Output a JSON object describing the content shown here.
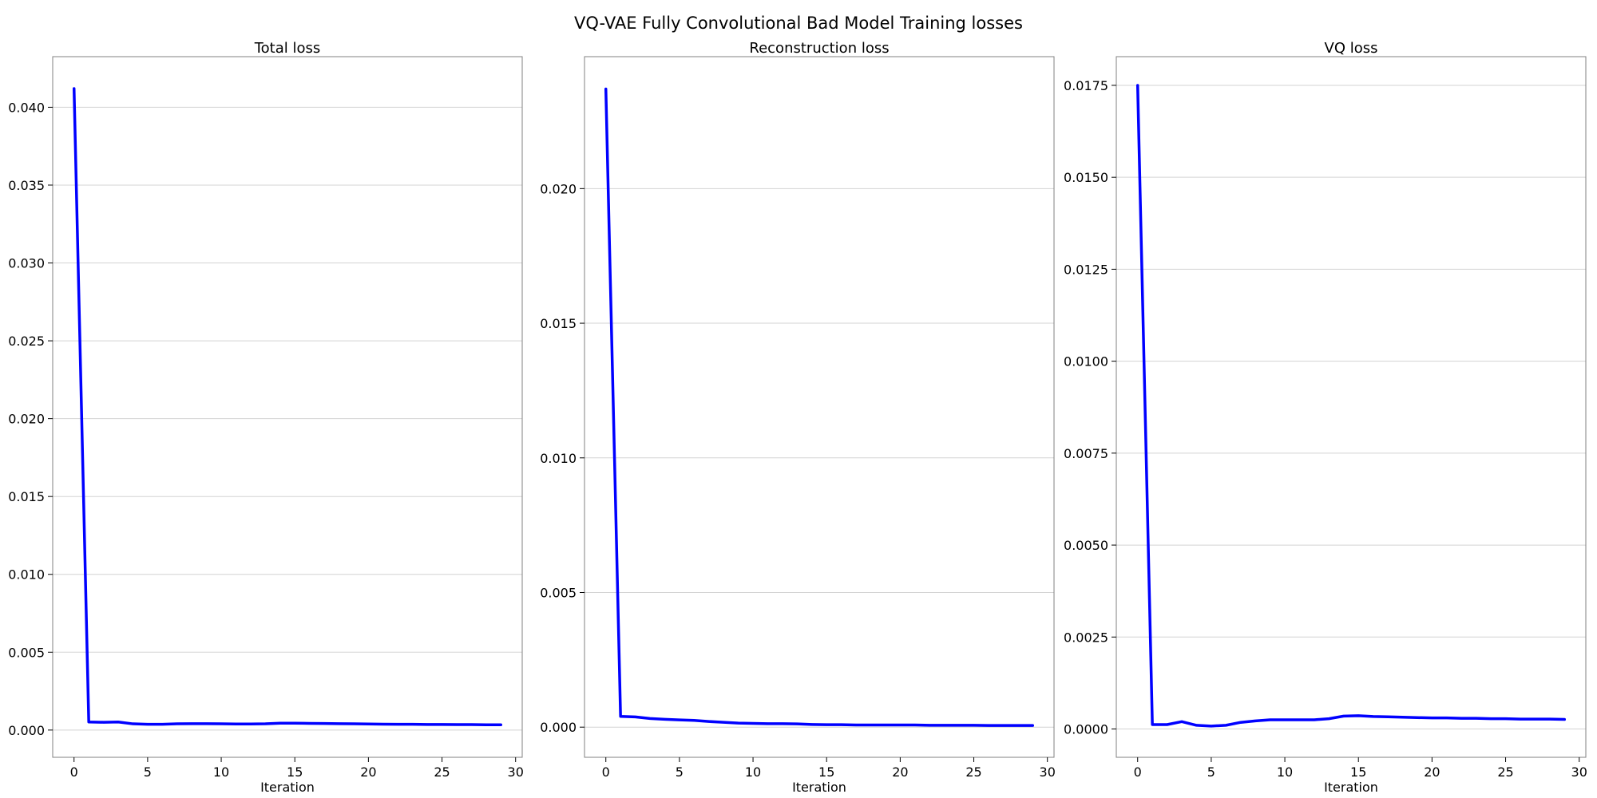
{
  "figure": {
    "suptitle": "VQ-VAE Fully Convolutional Bad Model Training losses"
  },
  "colors": {
    "line": "#0000ff",
    "grid": "#d3d3d3",
    "frame": "#808080",
    "text": "#000000"
  },
  "chart_data": [
    {
      "type": "line",
      "title": "Total loss",
      "xlabel": "Iteration",
      "ylabel": "",
      "xlim": [
        -1.45,
        30.45
      ],
      "ylim": [
        -0.00175,
        0.04325
      ],
      "grid": "y",
      "xticks": [
        0,
        5,
        10,
        15,
        20,
        25,
        30
      ],
      "xtick_labels": [
        "0",
        "5",
        "10",
        "15",
        "20",
        "25",
        "30"
      ],
      "yticks": [
        0,
        0.005,
        0.01,
        0.015,
        0.02,
        0.025,
        0.03,
        0.035,
        0.04
      ],
      "ytick_labels": [
        "0.000",
        "0.005",
        "0.010",
        "0.015",
        "0.020",
        "0.025",
        "0.030",
        "0.035",
        "0.040"
      ],
      "series": [
        {
          "x": [
            0,
            1,
            2,
            3,
            4,
            5,
            6,
            7,
            8,
            9,
            10,
            11,
            12,
            13,
            14,
            15,
            16,
            17,
            18,
            19,
            20,
            21,
            22,
            23,
            24,
            25,
            26,
            27,
            28,
            29
          ],
          "values": [
            0.0412,
            0.00052,
            0.0005,
            0.00052,
            0.0004,
            0.00037,
            0.00037,
            0.0004,
            0.00041,
            0.00041,
            0.0004,
            0.00039,
            0.00039,
            0.0004,
            0.00044,
            0.00044,
            0.00043,
            0.00042,
            0.00041,
            0.0004,
            0.00039,
            0.00038,
            0.00037,
            0.00037,
            0.00036,
            0.00036,
            0.00035,
            0.00035,
            0.00034,
            0.00034
          ]
        }
      ]
    },
    {
      "type": "line",
      "title": "Reconstruction loss",
      "xlabel": "Iteration",
      "ylabel": "",
      "xlim": [
        -1.45,
        30.45
      ],
      "ylim": [
        -0.00112,
        0.0249
      ],
      "grid": "y",
      "xticks": [
        0,
        5,
        10,
        15,
        20,
        25,
        30
      ],
      "xtick_labels": [
        "0",
        "5",
        "10",
        "15",
        "20",
        "25",
        "30"
      ],
      "yticks": [
        0,
        0.005,
        0.01,
        0.015,
        0.02
      ],
      "ytick_labels": [
        "0.000",
        "0.005",
        "0.010",
        "0.015",
        "0.020"
      ],
      "series": [
        {
          "x": [
            0,
            1,
            2,
            3,
            4,
            5,
            6,
            7,
            8,
            9,
            10,
            11,
            12,
            13,
            14,
            15,
            16,
            17,
            18,
            19,
            20,
            21,
            22,
            23,
            24,
            25,
            26,
            27,
            28,
            29
          ],
          "values": [
            0.0237,
            0.0004,
            0.00038,
            0.00032,
            0.00029,
            0.00027,
            0.00025,
            0.00021,
            0.00018,
            0.00015,
            0.00014,
            0.00013,
            0.00013,
            0.00012,
            0.0001,
            9e-05,
            9e-05,
            8e-05,
            8e-05,
            8e-05,
            8e-05,
            8e-05,
            7e-05,
            7e-05,
            7e-05,
            7e-05,
            6e-05,
            6e-05,
            6e-05,
            6e-05
          ]
        }
      ]
    },
    {
      "type": "line",
      "title": "VQ loss",
      "xlabel": "Iteration",
      "ylabel": "",
      "xlim": [
        -1.45,
        30.45
      ],
      "ylim": [
        -0.00077,
        0.01828
      ],
      "grid": "y",
      "xticks": [
        0,
        5,
        10,
        15,
        20,
        25,
        30
      ],
      "xtick_labels": [
        "0",
        "5",
        "10",
        "15",
        "20",
        "25",
        "30"
      ],
      "yticks": [
        0,
        0.0025,
        0.005,
        0.0075,
        0.01,
        0.0125,
        0.015,
        0.0175
      ],
      "ytick_labels": [
        "0.0000",
        "0.0025",
        "0.0050",
        "0.0075",
        "0.0100",
        "0.0125",
        "0.0150",
        "0.0175"
      ],
      "series": [
        {
          "x": [
            0,
            1,
            2,
            3,
            4,
            5,
            6,
            7,
            8,
            9,
            10,
            11,
            12,
            13,
            14,
            15,
            16,
            17,
            18,
            19,
            20,
            21,
            22,
            23,
            24,
            25,
            26,
            27,
            28,
            29
          ],
          "values": [
            0.0175,
            0.00012,
            0.00012,
            0.0002,
            0.0001,
            8e-05,
            0.0001,
            0.00018,
            0.00022,
            0.00025,
            0.00025,
            0.00025,
            0.00025,
            0.00028,
            0.00035,
            0.00036,
            0.00034,
            0.00033,
            0.00032,
            0.00031,
            0.0003,
            0.0003,
            0.00029,
            0.00029,
            0.00028,
            0.00028,
            0.00027,
            0.00027,
            0.00027,
            0.00026
          ]
        }
      ]
    }
  ]
}
